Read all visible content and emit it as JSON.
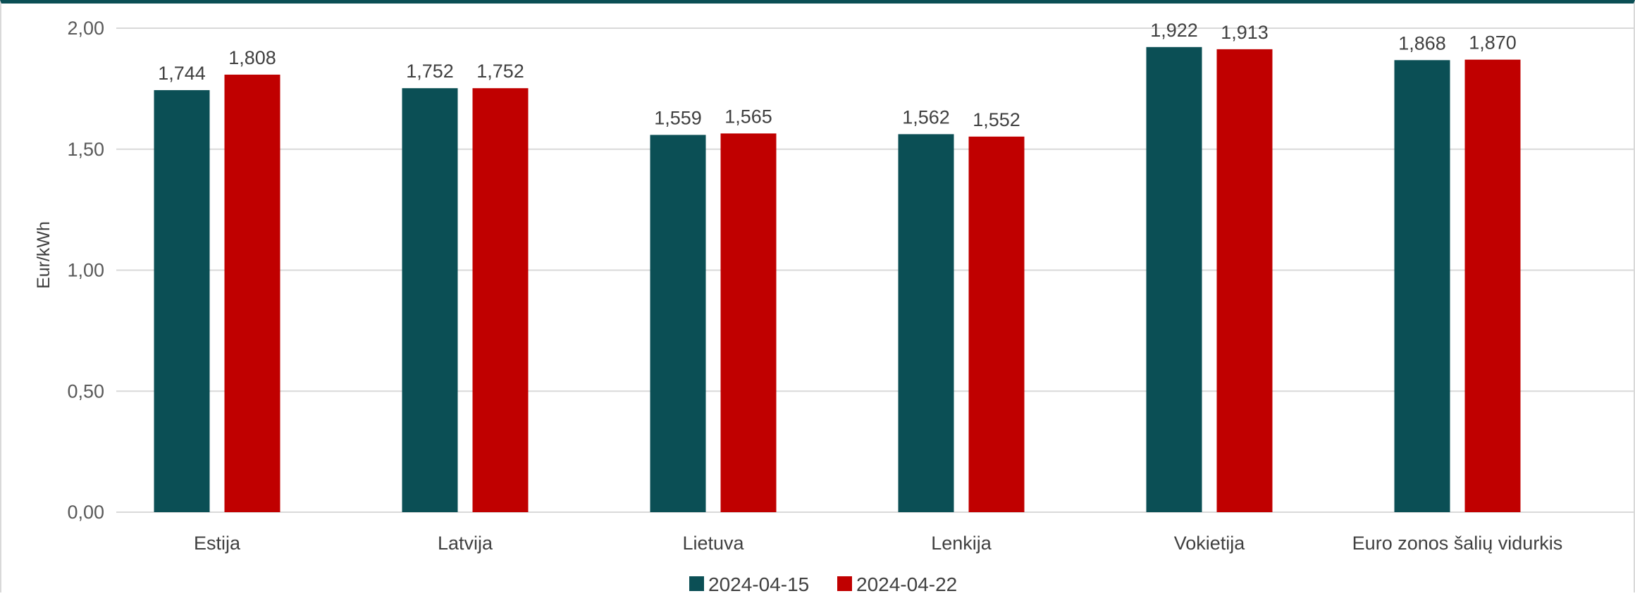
{
  "chart_data": {
    "type": "bar",
    "title": "",
    "xlabel": "",
    "ylabel": "Eur/kWh",
    "ylim": [
      0,
      2
    ],
    "yticks": [
      0,
      0.5,
      1,
      1.5,
      2
    ],
    "ytick_labels": [
      "0,00",
      "0,50",
      "1,00",
      "1,50",
      "2,00"
    ],
    "grid": true,
    "legend_position": "bottom-center",
    "categories": [
      "Estija",
      "Latvija",
      "Lietuva",
      "Lenkija",
      "Vokietija",
      "Euro zonos šalių vidurkis"
    ],
    "series": [
      {
        "name": "2024-04-15",
        "color": "#0b4f55",
        "values": [
          1.744,
          1.752,
          1.559,
          1.562,
          1.922,
          1.868
        ],
        "labels": [
          "1,744",
          "1,752",
          "1,559",
          "1,562",
          "1,922",
          "1,868"
        ]
      },
      {
        "name": "2024-04-22",
        "color": "#c00000",
        "values": [
          1.808,
          1.752,
          1.565,
          1.552,
          1.913,
          1.87
        ],
        "labels": [
          "1,808",
          "1,752",
          "1,565",
          "1,552",
          "1,913",
          "1,870"
        ]
      }
    ],
    "colors": {
      "grid": "#d9d9d9",
      "frame_top": "#0b4f55"
    }
  }
}
